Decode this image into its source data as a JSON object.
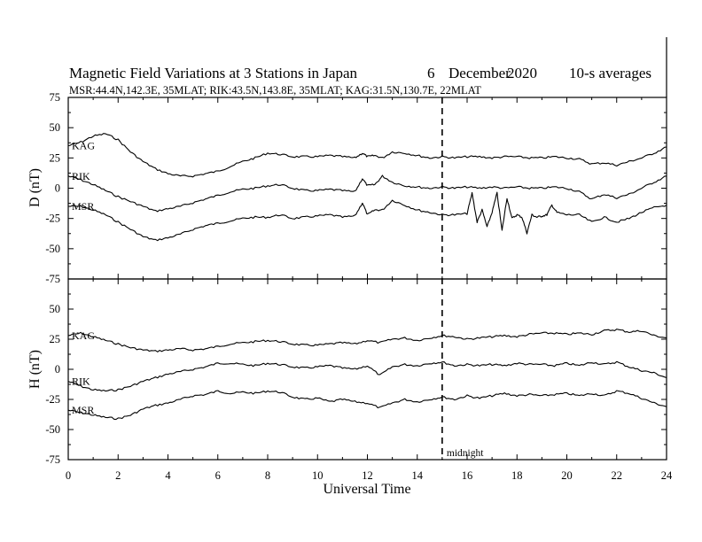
{
  "chart_data": {
    "type": "line",
    "title": "Magnetic Field Variations at 3 Stations in Japan",
    "date_day": "6",
    "date_month": "December",
    "date_year": "2020",
    "averaging": "10-s averages",
    "subtitle": "MSR:44.4N,142.3E, 35MLAT;  RIK:43.5N,143.8E, 35MLAT;  KAG:31.5N,130.7E, 22MLAT",
    "xlabel": "Universal Time",
    "xlim": [
      0,
      24
    ],
    "x_ticks": [
      "0",
      "2",
      "4",
      "6",
      "8",
      "10",
      "12",
      "14",
      "16",
      "18",
      "20",
      "22",
      "24"
    ],
    "annotation": {
      "text": "midnight",
      "x": 15
    },
    "panels": [
      {
        "ylabel": "D (nT)",
        "ylim": [
          -75,
          75
        ],
        "y_ticks": [
          "75",
          "50",
          "25",
          "0",
          "-25",
          "-50",
          "-75"
        ],
        "series": [
          {
            "name": "KAG",
            "x": [
              0,
              0.5,
              1,
              1.5,
              2,
              2.5,
              3,
              3.5,
              4,
              4.5,
              5,
              5.5,
              6,
              6.5,
              7,
              7.5,
              8,
              8.5,
              9,
              9.5,
              10,
              10.5,
              11,
              11.5,
              11.8,
              12,
              12.3,
              12.6,
              13,
              13.5,
              14,
              14.5,
              15,
              15.5,
              16,
              16.5,
              17,
              17.5,
              18,
              18.5,
              19,
              19.5,
              20,
              20.5,
              21,
              21.5,
              22,
              22.5,
              23,
              23.5,
              24
            ],
            "y": [
              35,
              38,
              43,
              45,
              40,
              30,
              22,
              16,
              12,
              10,
              10,
              12,
              14,
              18,
              22,
              25,
              29,
              28,
              26,
              26,
              26,
              27,
              26,
              25,
              29,
              26,
              27,
              25,
              30,
              29,
              27,
              25,
              26,
              25,
              26,
              26,
              25,
              26,
              26,
              25,
              25,
              26,
              25,
              24,
              20,
              21,
              19,
              22,
              25,
              29,
              34
            ]
          },
          {
            "name": "RIK",
            "x": [
              0,
              0.5,
              1,
              1.5,
              2,
              2.5,
              3,
              3.5,
              4,
              4.5,
              5,
              5.5,
              6,
              6.5,
              7,
              7.5,
              8,
              8.5,
              9,
              9.5,
              10,
              10.5,
              11,
              11.5,
              11.8,
              12,
              12.3,
              12.6,
              13,
              13.5,
              14,
              14.5,
              15,
              15.5,
              16,
              16.5,
              17,
              17.5,
              18,
              18.5,
              19,
              19.5,
              20,
              20.5,
              21,
              21.5,
              22,
              22.5,
              23,
              23.5,
              24
            ],
            "y": [
              10,
              7,
              3,
              -2,
              -7,
              -11,
              -15,
              -19,
              -17,
              -15,
              -12,
              -9,
              -6,
              -3,
              -1,
              0,
              2,
              3,
              0,
              -2,
              -2,
              -1,
              -2,
              -3,
              8,
              2,
              3,
              10,
              5,
              2,
              1,
              0,
              1,
              0,
              1,
              0,
              1,
              0,
              1,
              0,
              0,
              1,
              0,
              -3,
              -9,
              -5,
              -8,
              -5,
              0,
              5,
              10
            ]
          },
          {
            "name": "MSR",
            "x": [
              0,
              0.5,
              1,
              1.5,
              2,
              2.5,
              3,
              3.5,
              4,
              4.5,
              5,
              5.5,
              6,
              6.5,
              7,
              7.5,
              8,
              8.5,
              9,
              9.5,
              10,
              10.5,
              11,
              11.5,
              11.8,
              12,
              12.3,
              12.6,
              13,
              13.5,
              14,
              14.5,
              15,
              15.5,
              16,
              16.2,
              16.4,
              16.6,
              16.8,
              17,
              17.2,
              17.4,
              17.6,
              17.8,
              18,
              18.2,
              18.4,
              18.6,
              18.8,
              19,
              19.2,
              19.4,
              19.6,
              20,
              20.5,
              21,
              21.5,
              22,
              22.5,
              23,
              23.5,
              24
            ],
            "y": [
              -15,
              -15,
              -18,
              -22,
              -28,
              -34,
              -40,
              -43,
              -41,
              -38,
              -34,
              -31,
              -29,
              -27,
              -25,
              -24,
              -24,
              -22,
              -25,
              -24,
              -23,
              -22,
              -24,
              -23,
              -12,
              -22,
              -18,
              -18,
              -10,
              -14,
              -18,
              -20,
              -22,
              -22,
              -21,
              -4,
              -28,
              -18,
              -32,
              -20,
              -4,
              -35,
              -8,
              -25,
              -22,
              -24,
              -37,
              -22,
              -24,
              -23,
              -22,
              -14,
              -20,
              -22,
              -22,
              -28,
              -24,
              -28,
              -25,
              -20,
              -16,
              -14
            ]
          }
        ]
      },
      {
        "ylabel": "H (nT)",
        "ylim": [
          -75,
          75
        ],
        "y_ticks": [
          "75",
          "50",
          "25",
          "0",
          "-25",
          "-50",
          "-75"
        ],
        "series": [
          {
            "name": "KAG",
            "x": [
              0,
              0.5,
              1,
              1.5,
              2,
              2.5,
              3,
              3.5,
              4,
              4.5,
              5,
              5.5,
              6,
              6.5,
              7,
              7.5,
              8,
              8.5,
              9,
              9.5,
              10,
              10.5,
              11,
              11.5,
              12,
              12.5,
              13,
              13.5,
              14,
              14.5,
              15,
              15.5,
              16,
              16.5,
              17,
              17.5,
              18,
              18.5,
              19,
              19.5,
              20,
              20.5,
              21,
              21.5,
              22,
              22.5,
              23,
              23.5,
              24
            ],
            "y": [
              28,
              30,
              27,
              24,
              21,
              18,
              16,
              15,
              16,
              17,
              16,
              17,
              19,
              21,
              22,
              23,
              24,
              23,
              21,
              20,
              20,
              21,
              22,
              21,
              24,
              22,
              25,
              26,
              24,
              26,
              28,
              27,
              25,
              26,
              27,
              28,
              27,
              29,
              30,
              30,
              29,
              30,
              29,
              32,
              33,
              31,
              32,
              28,
              26
            ]
          },
          {
            "name": "RIK",
            "x": [
              0,
              0.5,
              1,
              1.5,
              2,
              2.5,
              3,
              3.5,
              4,
              4.5,
              5,
              5.5,
              6,
              6.5,
              7,
              7.5,
              8,
              8.5,
              9,
              9.5,
              10,
              10.5,
              11,
              11.5,
              12,
              12.5,
              13,
              13.5,
              14,
              14.5,
              15,
              15.5,
              16,
              16.5,
              17,
              17.5,
              18,
              18.5,
              19,
              19.5,
              20,
              20.5,
              21,
              21.5,
              22,
              22.5,
              23,
              23.5,
              24
            ],
            "y": [
              -10,
              -14,
              -17,
              -18,
              -17,
              -14,
              -10,
              -7,
              -4,
              -2,
              0,
              2,
              5,
              5,
              4,
              3,
              5,
              4,
              2,
              1,
              2,
              3,
              1,
              0,
              3,
              -5,
              2,
              4,
              3,
              5,
              6,
              3,
              4,
              3,
              4,
              3,
              5,
              4,
              4,
              3,
              5,
              3,
              6,
              4,
              6,
              2,
              -1,
              -3,
              -7
            ]
          },
          {
            "name": "MSR",
            "x": [
              0,
              0.5,
              1,
              1.5,
              2,
              2.5,
              3,
              3.5,
              4,
              4.5,
              5,
              5.5,
              6,
              6.5,
              7,
              7.5,
              8,
              8.5,
              9,
              9.5,
              10,
              10.5,
              11,
              11.5,
              12,
              12.5,
              13,
              13.5,
              14,
              14.5,
              15,
              15.5,
              16,
              16.5,
              17,
              17.5,
              18,
              18.5,
              19,
              19.5,
              20,
              20.5,
              21,
              21.5,
              22,
              22.5,
              23,
              23.5,
              24
            ],
            "y": [
              -34,
              -36,
              -38,
              -40,
              -41,
              -38,
              -33,
              -30,
              -28,
              -25,
              -22,
              -21,
              -18,
              -20,
              -19,
              -20,
              -18,
              -19,
              -23,
              -25,
              -24,
              -27,
              -25,
              -27,
              -28,
              -32,
              -28,
              -25,
              -27,
              -25,
              -23,
              -25,
              -22,
              -24,
              -22,
              -20,
              -22,
              -21,
              -22,
              -21,
              -20,
              -22,
              -20,
              -22,
              -18,
              -20,
              -24,
              -28,
              -31
            ]
          }
        ]
      }
    ]
  }
}
